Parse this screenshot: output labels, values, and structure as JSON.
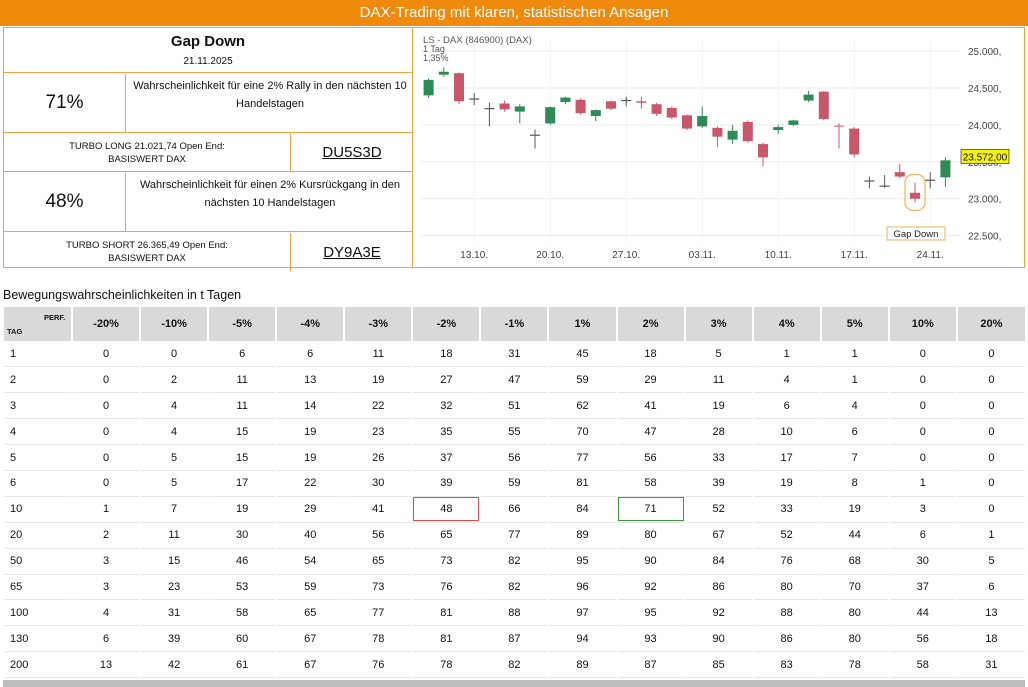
{
  "banner": {
    "title": "DAX-Trading mit klaren, statistischen Ansagen"
  },
  "signal": {
    "title": "Gap Down",
    "date": "21.11.2025",
    "long_pct": "71%",
    "long_text": "Wahrscheinlichkeit für eine 2% Rally in den nächsten 10 Handelstagen",
    "long_turbo": "TURBO LONG 21.021,74 Open End:",
    "long_basis": "BASISWERT DAX",
    "long_code": "DU5S3D",
    "short_pct": "48%",
    "short_text": "Wahrscheinlichkeit für einen 2% Kursrückgang in den nächsten 10 Handelstagen",
    "short_turbo": "TURBO SHORT 26.365,49 Open End:",
    "short_basis": "BASISWERT DAX",
    "short_code": "DY9A3E"
  },
  "chart_data": {
    "type": "candlestick",
    "header": [
      "LS - DAX (846900) (DAX)",
      "1 Tag",
      "1,35%"
    ],
    "ylim": [
      22400,
      25150
    ],
    "y_ticks": [
      "22.500,",
      "23.000,",
      "23.500,",
      "24.000,",
      "24.500,",
      "25.000,"
    ],
    "y_tick_values": [
      22500,
      23000,
      23500,
      24000,
      24500,
      25000
    ],
    "x_ticks": [
      "13.10.",
      "20.10.",
      "27.10.",
      "03.11.",
      "10.11.",
      "17.11.",
      "24.11."
    ],
    "x_tick_index": [
      3,
      8,
      13,
      18,
      23,
      28,
      33
    ],
    "last_price": "23.572,00",
    "last_value": 23572,
    "annotation": "Gap Down",
    "annotation_index": 32,
    "up_color": "#2e8b57",
    "down_color": "#c9576a",
    "candles": [
      {
        "o": 24400,
        "c": 24610,
        "h": 24630,
        "l": 24360
      },
      {
        "o": 24680,
        "c": 24720,
        "h": 24780,
        "l": 24650
      },
      {
        "o": 24700,
        "c": 24320,
        "h": 24710,
        "l": 24280
      },
      {
        "o": 24350,
        "c": 24350,
        "h": 24430,
        "l": 24270
      },
      {
        "o": 24220,
        "c": 24220,
        "h": 24300,
        "l": 23980
      },
      {
        "o": 24290,
        "c": 24210,
        "h": 24330,
        "l": 24180
      },
      {
        "o": 24180,
        "c": 24250,
        "h": 24280,
        "l": 24020
      },
      {
        "o": 23860,
        "c": 23860,
        "h": 23940,
        "l": 23680
      },
      {
        "o": 24020,
        "c": 24240,
        "h": 24250,
        "l": 24000
      },
      {
        "o": 24310,
        "c": 24370,
        "h": 24380,
        "l": 24280
      },
      {
        "o": 24340,
        "c": 24160,
        "h": 24360,
        "l": 24140
      },
      {
        "o": 24120,
        "c": 24200,
        "h": 24210,
        "l": 24050
      },
      {
        "o": 24320,
        "c": 24220,
        "h": 24330,
        "l": 24200
      },
      {
        "o": 24330,
        "c": 24330,
        "h": 24380,
        "l": 24250
      },
      {
        "o": 24320,
        "c": 24300,
        "h": 24380,
        "l": 24220
      },
      {
        "o": 24280,
        "c": 24150,
        "h": 24300,
        "l": 24120
      },
      {
        "o": 24230,
        "c": 24100,
        "h": 24250,
        "l": 24080
      },
      {
        "o": 24130,
        "c": 23950,
        "h": 24140,
        "l": 23930
      },
      {
        "o": 23980,
        "c": 24120,
        "h": 24250,
        "l": 23960
      },
      {
        "o": 23960,
        "c": 23840,
        "h": 23980,
        "l": 23700
      },
      {
        "o": 23800,
        "c": 23920,
        "h": 24000,
        "l": 23740
      },
      {
        "o": 24040,
        "c": 23780,
        "h": 24060,
        "l": 23760
      },
      {
        "o": 23740,
        "c": 23560,
        "h": 23760,
        "l": 23440
      },
      {
        "o": 23930,
        "c": 23970,
        "h": 24000,
        "l": 23880
      },
      {
        "o": 24000,
        "c": 24060,
        "h": 24070,
        "l": 23980
      },
      {
        "o": 24330,
        "c": 24410,
        "h": 24460,
        "l": 24310
      },
      {
        "o": 24450,
        "c": 24080,
        "h": 24460,
        "l": 24060
      },
      {
        "o": 23990,
        "c": 23980,
        "h": 24020,
        "l": 23680
      },
      {
        "o": 23950,
        "c": 23600,
        "h": 23970,
        "l": 23560
      },
      {
        "o": 23240,
        "c": 23240,
        "h": 23300,
        "l": 23140
      },
      {
        "o": 23170,
        "c": 23170,
        "h": 23320,
        "l": 23150
      },
      {
        "o": 23360,
        "c": 23300,
        "h": 23470,
        "l": 23280
      },
      {
        "o": 23080,
        "c": 23000,
        "h": 23220,
        "l": 22950
      },
      {
        "o": 23250,
        "c": 23250,
        "h": 23360,
        "l": 23140
      },
      {
        "o": 23290,
        "c": 23520,
        "h": 23560,
        "l": 23160
      }
    ]
  },
  "table": {
    "caption": "Bewegungswahrscheinlichkeiten in t Tagen",
    "corner_tag": "TAG",
    "corner_perf": "PERF.",
    "columns": [
      "-20%",
      "-10%",
      "-5%",
      "-4%",
      "-3%",
      "-2%",
      "-1%",
      "1%",
      "2%",
      "3%",
      "4%",
      "5%",
      "10%",
      "20%"
    ],
    "rows": [
      {
        "tag": "1",
        "values": [
          "0",
          "0",
          "6",
          "6",
          "11",
          "18",
          "31",
          "45",
          "18",
          "5",
          "1",
          "1",
          "0",
          "0"
        ]
      },
      {
        "tag": "2",
        "values": [
          "0",
          "2",
          "11",
          "13",
          "19",
          "27",
          "47",
          "59",
          "29",
          "11",
          "4",
          "1",
          "0",
          "0"
        ]
      },
      {
        "tag": "3",
        "values": [
          "0",
          "4",
          "11",
          "14",
          "22",
          "32",
          "51",
          "62",
          "41",
          "19",
          "6",
          "4",
          "0",
          "0"
        ]
      },
      {
        "tag": "4",
        "values": [
          "0",
          "4",
          "15",
          "19",
          "23",
          "35",
          "55",
          "70",
          "47",
          "28",
          "10",
          "6",
          "0",
          "0"
        ]
      },
      {
        "tag": "5",
        "values": [
          "0",
          "5",
          "15",
          "19",
          "26",
          "37",
          "56",
          "77",
          "56",
          "33",
          "17",
          "7",
          "0",
          "0"
        ]
      },
      {
        "tag": "6",
        "values": [
          "0",
          "5",
          "17",
          "22",
          "30",
          "39",
          "59",
          "81",
          "58",
          "39",
          "19",
          "8",
          "1",
          "0"
        ]
      },
      {
        "tag": "10",
        "values": [
          "1",
          "7",
          "19",
          "29",
          "41",
          "48",
          "66",
          "84",
          "71",
          "52",
          "33",
          "19",
          "3",
          "0"
        ]
      },
      {
        "tag": "20",
        "values": [
          "2",
          "11",
          "30",
          "40",
          "56",
          "65",
          "77",
          "89",
          "80",
          "67",
          "52",
          "44",
          "6",
          "1"
        ]
      },
      {
        "tag": "50",
        "values": [
          "3",
          "15",
          "46",
          "54",
          "65",
          "73",
          "82",
          "95",
          "90",
          "84",
          "76",
          "68",
          "30",
          "5"
        ]
      },
      {
        "tag": "65",
        "values": [
          "3",
          "23",
          "53",
          "59",
          "73",
          "76",
          "82",
          "96",
          "92",
          "86",
          "80",
          "70",
          "37",
          "6"
        ]
      },
      {
        "tag": "100",
        "values": [
          "4",
          "31",
          "58",
          "65",
          "77",
          "81",
          "88",
          "97",
          "95",
          "92",
          "88",
          "80",
          "44",
          "13"
        ]
      },
      {
        "tag": "130",
        "values": [
          "6",
          "39",
          "60",
          "67",
          "78",
          "81",
          "87",
          "94",
          "93",
          "90",
          "86",
          "80",
          "56",
          "18"
        ]
      },
      {
        "tag": "200",
        "values": [
          "13",
          "42",
          "61",
          "67",
          "76",
          "78",
          "82",
          "89",
          "87",
          "85",
          "83",
          "78",
          "58",
          "31"
        ]
      }
    ],
    "highlight_red": {
      "row": 6,
      "col": 5
    },
    "highlight_green": {
      "row": 6,
      "col": 8
    }
  }
}
